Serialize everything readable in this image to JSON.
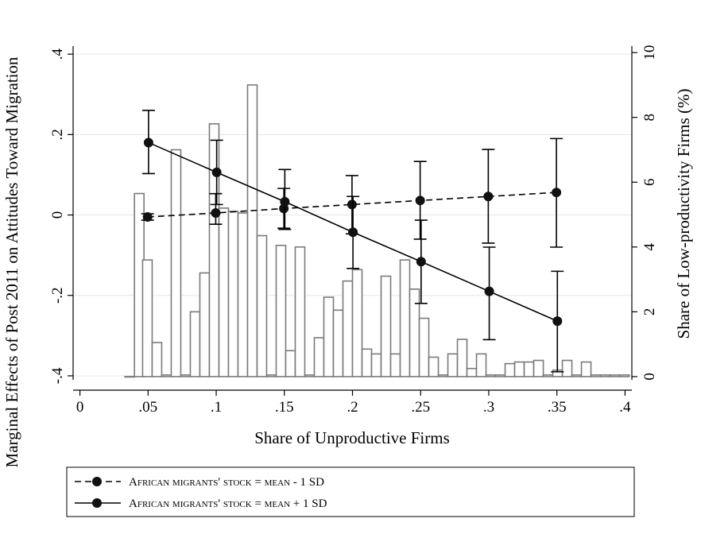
{
  "chart_data": {
    "type": "line",
    "x_label": "Share of Unproductive Firms",
    "y_left_label": "Marginal Effects of Post 2011 on Attitudes Toward Migration",
    "y_right_label": "Share of Low-productivity Firms (%)",
    "x_ticks": [
      0,
      0.05,
      0.1,
      0.15,
      0.2,
      0.25,
      0.3,
      0.35,
      0.4
    ],
    "x_tick_labels": [
      "0",
      ".05",
      ".1",
      ".15",
      ".2",
      ".25",
      ".3",
      ".35",
      ".4"
    ],
    "xlim": [
      -0.005,
      0.405
    ],
    "y_left_ticks": [
      -0.4,
      -0.2,
      0,
      0.2,
      0.4
    ],
    "y_left_tick_labels": [
      "-.4",
      "-.2",
      "0",
      ".2",
      ".4"
    ],
    "ylim_left": [
      -0.41,
      0.42
    ],
    "y_right_ticks": [
      0,
      2,
      4,
      6,
      8,
      10
    ],
    "y_right_tick_labels": [
      "0",
      "2",
      "4",
      "6",
      "8",
      "10"
    ],
    "ylim_right": [
      -0.1,
      10.2
    ],
    "grid": "horizontal",
    "series": [
      {
        "name": "African migrants' stock = mean - 1 SD",
        "style": "dashed",
        "x": [
          0.05,
          0.1,
          0.15,
          0.2,
          0.25,
          0.3,
          0.35
        ],
        "y": [
          -0.005,
          0.005,
          0.016,
          0.026,
          0.036,
          0.046,
          0.056
        ],
        "ci_low": [
          -0.013,
          -0.023,
          -0.033,
          -0.047,
          -0.06,
          -0.07,
          -0.08
        ],
        "ci_high": [
          0.003,
          0.053,
          0.066,
          0.098,
          0.133,
          0.163,
          0.19
        ]
      },
      {
        "name": "African migrants' stock = mean + 1 SD",
        "style": "solid",
        "x": [
          0.05,
          0.1,
          0.15,
          0.2,
          0.25,
          0.3,
          0.35
        ],
        "y": [
          0.18,
          0.106,
          0.033,
          -0.043,
          -0.116,
          -0.19,
          -0.264
        ],
        "ci_low": [
          0.103,
          0.026,
          -0.036,
          -0.133,
          -0.22,
          -0.31,
          -0.39
        ],
        "ci_high": [
          0.26,
          0.186,
          0.113,
          0.046,
          -0.013,
          -0.08,
          -0.14
        ]
      }
    ],
    "histogram": {
      "axis": "right",
      "unit": "%",
      "x": [
        0.0365,
        0.0435,
        0.0495,
        0.0565,
        0.0635,
        0.0705,
        0.0775,
        0.0845,
        0.0915,
        0.0985,
        0.1055,
        0.1125,
        0.1195,
        0.1265,
        0.1335,
        0.1405,
        0.1475,
        0.1545,
        0.1615,
        0.1685,
        0.1755,
        0.1825,
        0.1895,
        0.1965,
        0.2035,
        0.2105,
        0.2175,
        0.2245,
        0.2315,
        0.2385,
        0.2455,
        0.2525,
        0.2595,
        0.2665,
        0.2735,
        0.2805,
        0.2875,
        0.2945,
        0.3015,
        0.3085,
        0.3155,
        0.3225,
        0.3295,
        0.3365,
        0.3435,
        0.3505,
        0.3575,
        0.3645,
        0.3715,
        0.3785,
        0.3855,
        0.3925,
        0.3995
      ],
      "values": [
        0,
        5.65,
        3.6,
        1.05,
        0.05,
        7.0,
        0.05,
        2.0,
        3.2,
        7.8,
        5.2,
        5.1,
        5.05,
        9.0,
        4.35,
        0.05,
        4.05,
        0.8,
        4.0,
        0.05,
        1.2,
        2.45,
        2.05,
        2.95,
        3.3,
        0.85,
        0.7,
        3.1,
        0.7,
        3.6,
        2.7,
        1.8,
        0.6,
        0.05,
        0.7,
        1.15,
        0.25,
        0.7,
        0.05,
        0.05,
        0.4,
        0.45,
        0.45,
        0.5,
        0.05,
        0.2,
        0.5,
        0.05,
        0.45,
        0.05,
        0.05,
        0.05,
        0.05
      ]
    }
  },
  "legend": {
    "entry1_text": "African migrants' stock = mean - 1 SD",
    "entry2_text": "African migrants' stock = mean + 1 SD"
  }
}
